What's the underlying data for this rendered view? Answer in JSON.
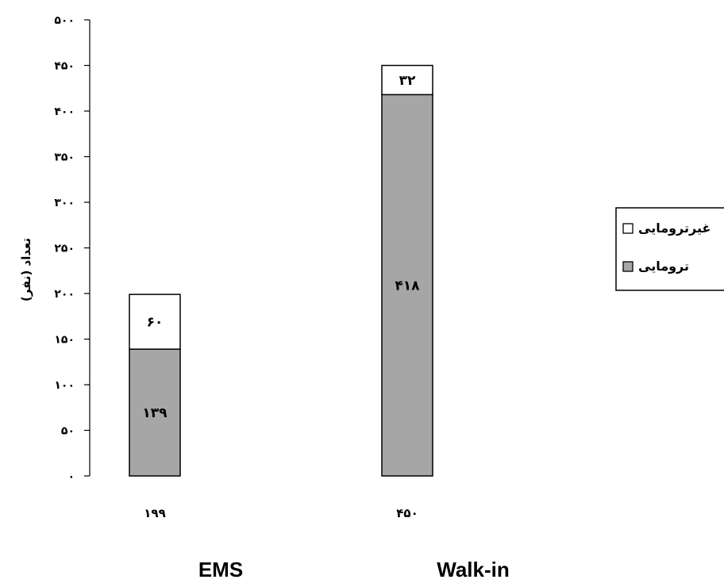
{
  "chart_data": {
    "type": "bar",
    "stacked": true,
    "categories": [
      "EMS",
      "Walk-in"
    ],
    "category_totals": [
      "۱۹۹",
      "۴۵۰"
    ],
    "series": [
      {
        "name": "ترومایی",
        "values": [
          139,
          418
        ],
        "value_labels": [
          "۱۳۹",
          "۴۱۸"
        ],
        "color": "#a6a6a6"
      },
      {
        "name": "غیرترومایی",
        "values": [
          60,
          32
        ],
        "value_labels": [
          "۶۰",
          "۳۲"
        ],
        "color": "#ffffff"
      }
    ],
    "ylabel": "تعداد (نفر)",
    "ylim": [
      0,
      500
    ],
    "yticks": [
      0,
      50,
      100,
      150,
      200,
      250,
      300,
      350,
      400,
      450,
      500
    ],
    "ytick_labels": [
      "۰",
      "۵۰",
      "۱۰۰",
      "۱۵۰",
      "۲۰۰",
      "۲۵۰",
      "۳۰۰",
      "۳۵۰",
      "۴۰۰",
      "۴۵۰",
      "۵۰۰"
    ],
    "grid": false,
    "legend": {
      "placement": "right",
      "entries": [
        {
          "label": "غیرترومایی",
          "color": "#ffffff"
        },
        {
          "label": "ترومایی",
          "color": "#a6a6a6"
        }
      ]
    }
  }
}
